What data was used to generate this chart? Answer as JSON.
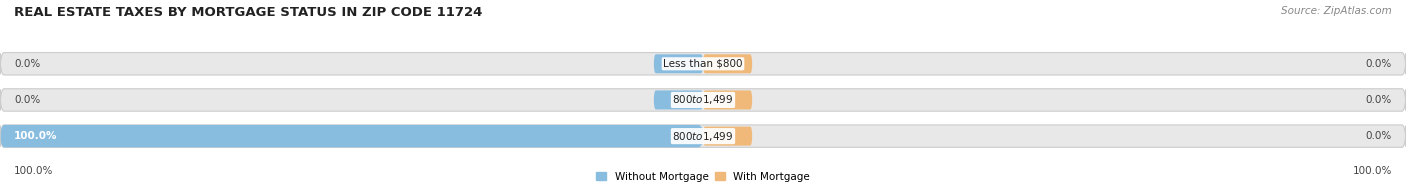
{
  "title": "REAL ESTATE TAXES BY MORTGAGE STATUS IN ZIP CODE 11724",
  "source": "Source: ZipAtlas.com",
  "rows": [
    {
      "label": "Less than $800",
      "without_mortgage": 0.0,
      "with_mortgage": 0.0
    },
    {
      "label": "$800 to $1,499",
      "without_mortgage": 0.0,
      "with_mortgage": 0.0
    },
    {
      "label": "$800 to $1,499",
      "without_mortgage": 100.0,
      "with_mortgage": 0.0
    }
  ],
  "color_without": "#89BDE0",
  "color_with": "#F0B97A",
  "bar_bg_color": "#E8E8E8",
  "bar_edge_color": "#CCCCCC",
  "title_fontsize": 9.5,
  "source_fontsize": 7.5,
  "label_fontsize": 7.5,
  "pct_fontsize": 7.5,
  "tick_fontsize": 7.5,
  "legend_without": "Without Mortgage",
  "legend_with": "With Mortgage",
  "left_tick_label": "100.0%",
  "right_tick_label": "100.0%",
  "xlim_left": -100,
  "xlim_right": 100
}
